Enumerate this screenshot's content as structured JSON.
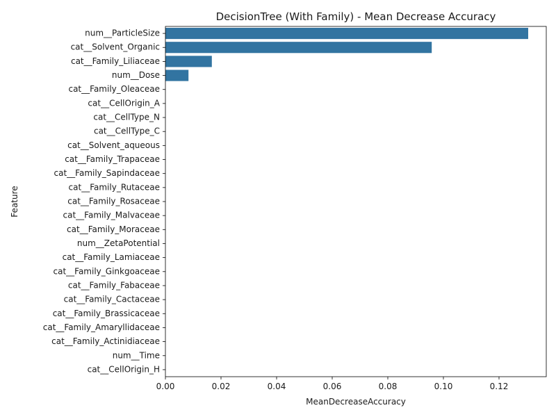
{
  "chart_data": {
    "type": "bar",
    "orientation": "horizontal",
    "title": "DecisionTree (With Family) - Mean Decrease Accuracy",
    "xlabel": "MeanDecreaseAccuracy",
    "ylabel": "Feature",
    "xlim": [
      0,
      0.137
    ],
    "x_ticks": [
      "0.00",
      "0.02",
      "0.04",
      "0.06",
      "0.08",
      "0.10",
      "0.12"
    ],
    "grid": false,
    "bar_color": "#3274a1",
    "categories": [
      "num__ParticleSize",
      "cat__Solvent_Organic",
      "cat__Family_Liliaceae",
      "num__Dose",
      "cat__Family_Oleaceae",
      "cat__CellOrigin_A",
      "cat__CellType_N",
      "cat__CellType_C",
      "cat__Solvent_aqueous",
      "cat__Family_Trapaceae",
      "cat__Family_Sapindaceae",
      "cat__Family_Rutaceae",
      "cat__Family_Rosaceae",
      "cat__Family_Malvaceae",
      "cat__Family_Moraceae",
      "num__ZetaPotential",
      "cat__Family_Lamiaceae",
      "cat__Family_Ginkgoaceae",
      "cat__Family_Fabaceae",
      "cat__Family_Cactaceae",
      "cat__Family_Brassicaceae",
      "cat__Family_Amaryllidaceae",
      "cat__Family_Actinidiaceae ",
      "num__Time",
      "cat__CellOrigin_H"
    ],
    "values": [
      0.1305,
      0.0958,
      0.0167,
      0.0083,
      0,
      0,
      0,
      0,
      0,
      0,
      0,
      0,
      0,
      0,
      0,
      0,
      0,
      0,
      0,
      0,
      0,
      0,
      0,
      0,
      0
    ]
  }
}
